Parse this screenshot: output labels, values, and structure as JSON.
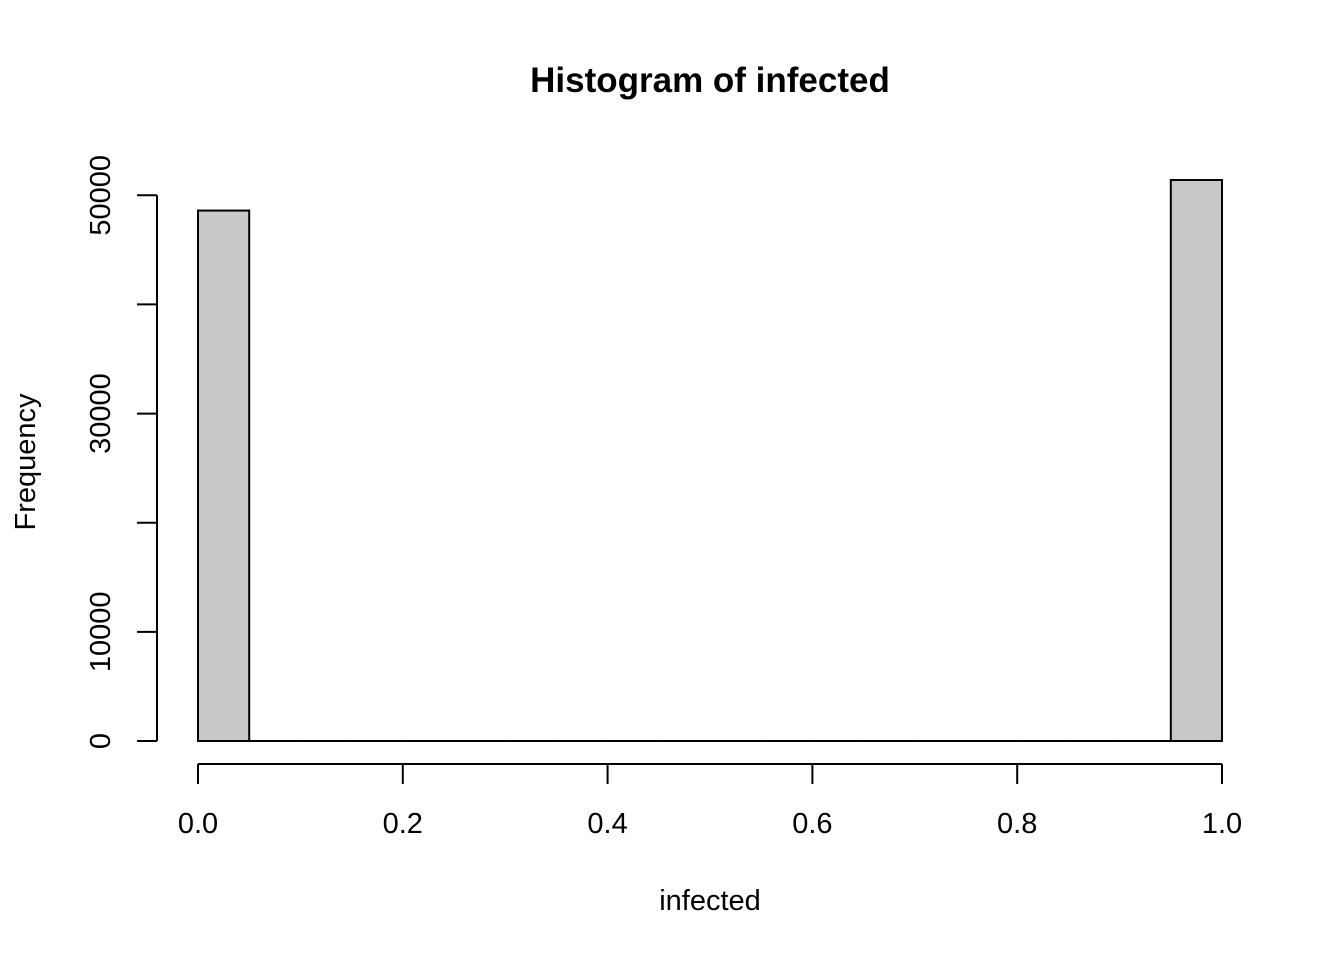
{
  "chart_data": {
    "type": "bar",
    "title": "Histogram of infected",
    "xlabel": "infected",
    "ylabel": "Frequency",
    "bin_width": 0.05,
    "bins": [
      {
        "start": 0.0,
        "end": 0.05,
        "count": 48600
      },
      {
        "start": 0.05,
        "end": 0.1,
        "count": 0
      },
      {
        "start": 0.1,
        "end": 0.15,
        "count": 0
      },
      {
        "start": 0.15,
        "end": 0.2,
        "count": 0
      },
      {
        "start": 0.2,
        "end": 0.25,
        "count": 0
      },
      {
        "start": 0.25,
        "end": 0.3,
        "count": 0
      },
      {
        "start": 0.3,
        "end": 0.35,
        "count": 0
      },
      {
        "start": 0.35,
        "end": 0.4,
        "count": 0
      },
      {
        "start": 0.4,
        "end": 0.45,
        "count": 0
      },
      {
        "start": 0.45,
        "end": 0.5,
        "count": 0
      },
      {
        "start": 0.5,
        "end": 0.55,
        "count": 0
      },
      {
        "start": 0.55,
        "end": 0.6,
        "count": 0
      },
      {
        "start": 0.6,
        "end": 0.65,
        "count": 0
      },
      {
        "start": 0.65,
        "end": 0.7,
        "count": 0
      },
      {
        "start": 0.7,
        "end": 0.75,
        "count": 0
      },
      {
        "start": 0.75,
        "end": 0.8,
        "count": 0
      },
      {
        "start": 0.8,
        "end": 0.85,
        "count": 0
      },
      {
        "start": 0.85,
        "end": 0.9,
        "count": 0
      },
      {
        "start": 0.9,
        "end": 0.95,
        "count": 0
      },
      {
        "start": 0.95,
        "end": 1.0,
        "count": 51400
      }
    ],
    "xlim": [
      0,
      1
    ],
    "ylim": [
      0,
      51400
    ],
    "x_ticks": [
      0.0,
      0.2,
      0.4,
      0.6,
      0.8,
      1.0
    ],
    "x_tick_labels": [
      "0.0",
      "0.2",
      "0.4",
      "0.6",
      "0.8",
      "1.0"
    ],
    "y_ticks": [
      0,
      10000,
      20000,
      30000,
      40000,
      50000
    ],
    "y_tick_labels": [
      "0",
      "10000",
      "",
      "30000",
      "",
      "50000"
    ],
    "grid": false,
    "legend": "none",
    "bar_fill": "#c8c8c8",
    "bar_stroke": "#000000"
  }
}
